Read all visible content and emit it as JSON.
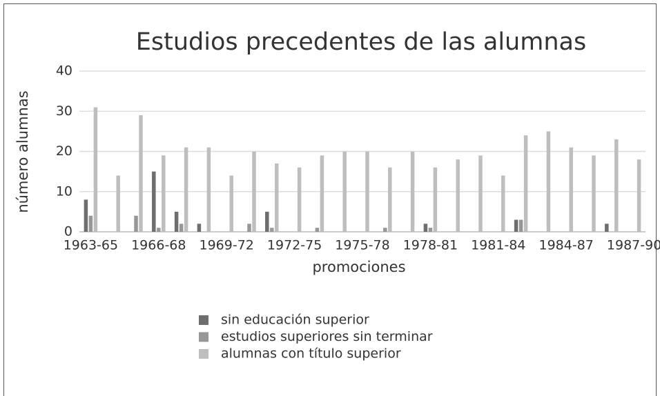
{
  "chart_data": {
    "type": "bar",
    "title": "Estudios precedentes de las alumnas",
    "x_label": "promociones",
    "y_label": "número alumnas",
    "categories": [
      "1963-65",
      null,
      null,
      "1966-68",
      null,
      null,
      "1969-72",
      null,
      null,
      "1972-75",
      null,
      null,
      "1975-78",
      null,
      null,
      "1978-81",
      null,
      null,
      "1981-84",
      null,
      null,
      "1984-87",
      null,
      null,
      "1987-90"
    ],
    "series": [
      {
        "name": "sin educación superior",
        "color": "#6e6e6e",
        "values": [
          8,
          0,
          0,
          15,
          5,
          2,
          0,
          0,
          5,
          0,
          0,
          0,
          0,
          0,
          0,
          2,
          0,
          0,
          0,
          3,
          0,
          0,
          0,
          2,
          0
        ]
      },
      {
        "name": "estudios superiores sin terminar",
        "color": "#979797",
        "values": [
          4,
          0,
          4,
          1,
          2,
          0,
          0,
          2,
          1,
          0,
          1,
          0,
          0,
          1,
          0,
          1,
          0,
          0,
          0,
          3,
          0,
          0,
          0,
          0,
          0
        ]
      },
      {
        "name": "alumnas con título superior",
        "color": "#bebebe",
        "values": [
          31,
          14,
          29,
          19,
          21,
          21,
          14,
          20,
          17,
          16,
          19,
          20,
          20,
          16,
          20,
          16,
          18,
          19,
          14,
          24,
          25,
          21,
          19,
          23,
          18
        ]
      }
    ],
    "ylim": [
      0,
      40
    ],
    "yticks": [
      0,
      10,
      20,
      30,
      40
    ],
    "grid": true
  }
}
